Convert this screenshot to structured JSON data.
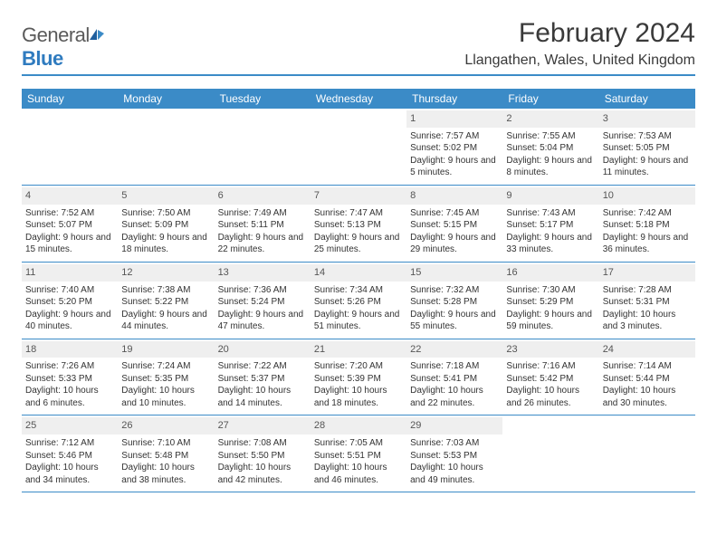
{
  "logo": {
    "text1": "General",
    "text2": "Blue"
  },
  "title": "February 2024",
  "location": "Llangathen, Wales, United Kingdom",
  "colors": {
    "header_bar": "#3b8bc7",
    "day_num_bg": "#efefef",
    "rule": "#3b8bc7",
    "logo_gray": "#5a5a5a",
    "logo_blue": "#2f7bbf"
  },
  "dow": [
    "Sunday",
    "Monday",
    "Tuesday",
    "Wednesday",
    "Thursday",
    "Friday",
    "Saturday"
  ],
  "weeks": [
    [
      null,
      null,
      null,
      null,
      {
        "n": "1",
        "sr": "7:57 AM",
        "ss": "5:02 PM",
        "dl": "9 hours and 5 minutes."
      },
      {
        "n": "2",
        "sr": "7:55 AM",
        "ss": "5:04 PM",
        "dl": "9 hours and 8 minutes."
      },
      {
        "n": "3",
        "sr": "7:53 AM",
        "ss": "5:05 PM",
        "dl": "9 hours and 11 minutes."
      }
    ],
    [
      {
        "n": "4",
        "sr": "7:52 AM",
        "ss": "5:07 PM",
        "dl": "9 hours and 15 minutes."
      },
      {
        "n": "5",
        "sr": "7:50 AM",
        "ss": "5:09 PM",
        "dl": "9 hours and 18 minutes."
      },
      {
        "n": "6",
        "sr": "7:49 AM",
        "ss": "5:11 PM",
        "dl": "9 hours and 22 minutes."
      },
      {
        "n": "7",
        "sr": "7:47 AM",
        "ss": "5:13 PM",
        "dl": "9 hours and 25 minutes."
      },
      {
        "n": "8",
        "sr": "7:45 AM",
        "ss": "5:15 PM",
        "dl": "9 hours and 29 minutes."
      },
      {
        "n": "9",
        "sr": "7:43 AM",
        "ss": "5:17 PM",
        "dl": "9 hours and 33 minutes."
      },
      {
        "n": "10",
        "sr": "7:42 AM",
        "ss": "5:18 PM",
        "dl": "9 hours and 36 minutes."
      }
    ],
    [
      {
        "n": "11",
        "sr": "7:40 AM",
        "ss": "5:20 PM",
        "dl": "9 hours and 40 minutes."
      },
      {
        "n": "12",
        "sr": "7:38 AM",
        "ss": "5:22 PM",
        "dl": "9 hours and 44 minutes."
      },
      {
        "n": "13",
        "sr": "7:36 AM",
        "ss": "5:24 PM",
        "dl": "9 hours and 47 minutes."
      },
      {
        "n": "14",
        "sr": "7:34 AM",
        "ss": "5:26 PM",
        "dl": "9 hours and 51 minutes."
      },
      {
        "n": "15",
        "sr": "7:32 AM",
        "ss": "5:28 PM",
        "dl": "9 hours and 55 minutes."
      },
      {
        "n": "16",
        "sr": "7:30 AM",
        "ss": "5:29 PM",
        "dl": "9 hours and 59 minutes."
      },
      {
        "n": "17",
        "sr": "7:28 AM",
        "ss": "5:31 PM",
        "dl": "10 hours and 3 minutes."
      }
    ],
    [
      {
        "n": "18",
        "sr": "7:26 AM",
        "ss": "5:33 PM",
        "dl": "10 hours and 6 minutes."
      },
      {
        "n": "19",
        "sr": "7:24 AM",
        "ss": "5:35 PM",
        "dl": "10 hours and 10 minutes."
      },
      {
        "n": "20",
        "sr": "7:22 AM",
        "ss": "5:37 PM",
        "dl": "10 hours and 14 minutes."
      },
      {
        "n": "21",
        "sr": "7:20 AM",
        "ss": "5:39 PM",
        "dl": "10 hours and 18 minutes."
      },
      {
        "n": "22",
        "sr": "7:18 AM",
        "ss": "5:41 PM",
        "dl": "10 hours and 22 minutes."
      },
      {
        "n": "23",
        "sr": "7:16 AM",
        "ss": "5:42 PM",
        "dl": "10 hours and 26 minutes."
      },
      {
        "n": "24",
        "sr": "7:14 AM",
        "ss": "5:44 PM",
        "dl": "10 hours and 30 minutes."
      }
    ],
    [
      {
        "n": "25",
        "sr": "7:12 AM",
        "ss": "5:46 PM",
        "dl": "10 hours and 34 minutes."
      },
      {
        "n": "26",
        "sr": "7:10 AM",
        "ss": "5:48 PM",
        "dl": "10 hours and 38 minutes."
      },
      {
        "n": "27",
        "sr": "7:08 AM",
        "ss": "5:50 PM",
        "dl": "10 hours and 42 minutes."
      },
      {
        "n": "28",
        "sr": "7:05 AM",
        "ss": "5:51 PM",
        "dl": "10 hours and 46 minutes."
      },
      {
        "n": "29",
        "sr": "7:03 AM",
        "ss": "5:53 PM",
        "dl": "10 hours and 49 minutes."
      },
      null,
      null
    ]
  ],
  "labels": {
    "sunrise": "Sunrise: ",
    "sunset": "Sunset: ",
    "daylight": "Daylight: "
  }
}
